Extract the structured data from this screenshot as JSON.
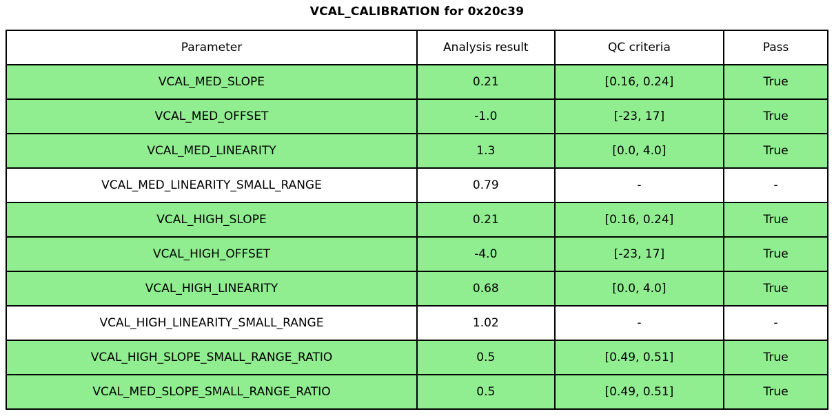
{
  "title": "VCAL_CALIBRATION for 0x20c39",
  "colors": {
    "pass_green": "#90EE90",
    "no_criteria_white": "#FFFFFF",
    "border": "#000000",
    "text": "#000000"
  },
  "table": {
    "columns": [
      "Parameter",
      "Analysis result",
      "QC criteria",
      "Pass"
    ],
    "rows": [
      {
        "parameter": "VCAL_MED_SLOPE",
        "result": "0.21",
        "criteria": "[0.16, 0.24]",
        "pass": "True",
        "highlight": true
      },
      {
        "parameter": "VCAL_MED_OFFSET",
        "result": "-1.0",
        "criteria": "[-23, 17]",
        "pass": "True",
        "highlight": true
      },
      {
        "parameter": "VCAL_MED_LINEARITY",
        "result": "1.3",
        "criteria": "[0.0, 4.0]",
        "pass": "True",
        "highlight": true
      },
      {
        "parameter": "VCAL_MED_LINEARITY_SMALL_RANGE",
        "result": "0.79",
        "criteria": "-",
        "pass": "-",
        "highlight": false
      },
      {
        "parameter": "VCAL_HIGH_SLOPE",
        "result": "0.21",
        "criteria": "[0.16, 0.24]",
        "pass": "True",
        "highlight": true
      },
      {
        "parameter": "VCAL_HIGH_OFFSET",
        "result": "-4.0",
        "criteria": "[-23, 17]",
        "pass": "True",
        "highlight": true
      },
      {
        "parameter": "VCAL_HIGH_LINEARITY",
        "result": "0.68",
        "criteria": "[0.0, 4.0]",
        "pass": "True",
        "highlight": true
      },
      {
        "parameter": "VCAL_HIGH_LINEARITY_SMALL_RANGE",
        "result": "1.02",
        "criteria": "-",
        "pass": "-",
        "highlight": false
      },
      {
        "parameter": "VCAL_HIGH_SLOPE_SMALL_RANGE_RATIO",
        "result": "0.5",
        "criteria": "[0.49, 0.51]",
        "pass": "True",
        "highlight": true
      },
      {
        "parameter": "VCAL_MED_SLOPE_SMALL_RANGE_RATIO",
        "result": "0.5",
        "criteria": "[0.49, 0.51]",
        "pass": "True",
        "highlight": true
      }
    ]
  }
}
